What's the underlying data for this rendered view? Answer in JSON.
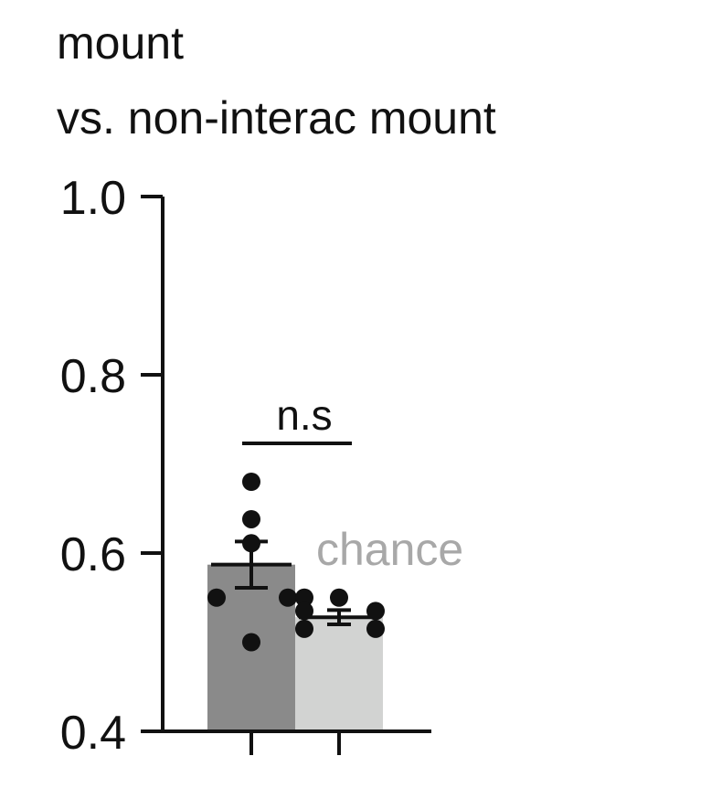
{
  "chart_data": {
    "type": "bar",
    "title_lines": [
      "mount",
      "vs. non-interac mount"
    ],
    "xlabel": "",
    "ylabel": "",
    "ylim": [
      0.4,
      1.0
    ],
    "yticks": [
      {
        "value": 1.0,
        "label": "1.0"
      },
      {
        "value": 0.8,
        "label": "0.8"
      },
      {
        "value": 0.6,
        "label": "0.6"
      },
      {
        "value": 0.4,
        "label": "0.4"
      }
    ],
    "bars": [
      {
        "index": 0,
        "mean": 0.587,
        "sem": 0.026,
        "color": "#8a8a8a",
        "points": [
          0.68,
          0.638,
          0.611,
          0.55,
          0.55,
          0.5
        ]
      },
      {
        "index": 1,
        "mean": 0.528,
        "sem": 0.008,
        "color": "#d2d3d2",
        "points": [
          0.55,
          0.55,
          0.535,
          0.535,
          0.515,
          0.515
        ]
      }
    ],
    "annotations": {
      "significance": "n.s",
      "chance_label": "chance",
      "chance_color": "#a8a8a8"
    }
  }
}
